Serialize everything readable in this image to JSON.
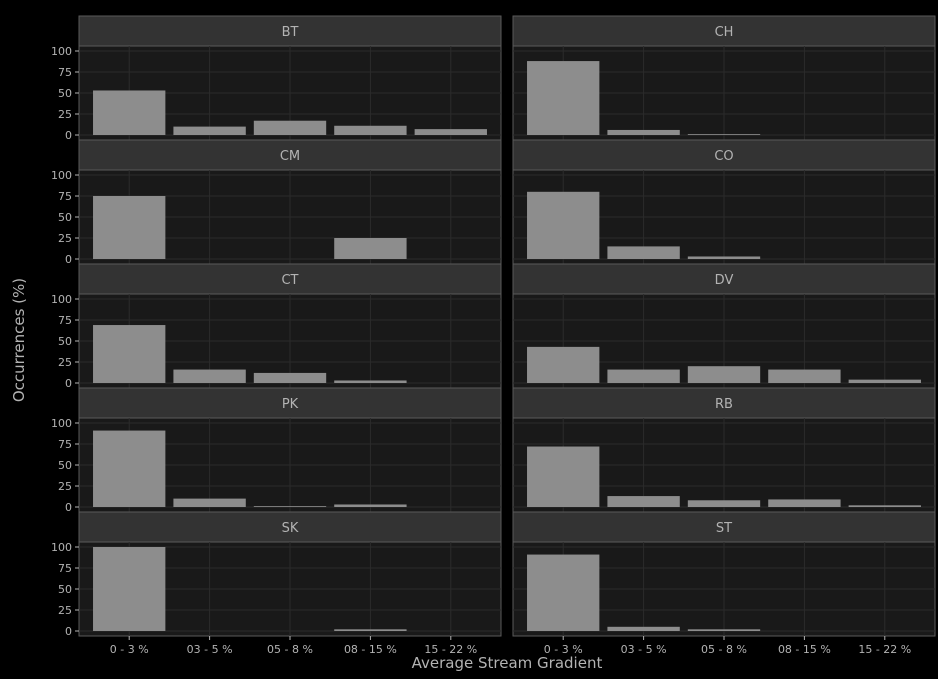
{
  "chart_data": {
    "type": "bar",
    "layout": "faceted 5 rows x 2 columns",
    "xlabel": "Average Stream Gradient",
    "ylabel": "Occurrences (%)",
    "categories": [
      "0 - 3 %",
      "03 - 5 %",
      "05 - 8 %",
      "08 - 15 %",
      "15 - 22 %"
    ],
    "ylim": [
      0,
      100
    ],
    "yticks": [
      0,
      25,
      50,
      75,
      100
    ],
    "grid": true,
    "colors": {
      "background": "#000000",
      "panel": "#191919",
      "strip": "#333333",
      "bar": "#8d8d8d",
      "text": "#b3b3b3",
      "grid": "#2b2b2b",
      "border": "#5a5a5a"
    },
    "panels": [
      {
        "label": "BT",
        "values": [
          53,
          10,
          17,
          11,
          7
        ]
      },
      {
        "label": "CH",
        "values": [
          88,
          6,
          1,
          0,
          0
        ]
      },
      {
        "label": "CM",
        "values": [
          75,
          0,
          0,
          25,
          0
        ]
      },
      {
        "label": "CO",
        "values": [
          80,
          15,
          3,
          0,
          0
        ]
      },
      {
        "label": "CT",
        "values": [
          69,
          16,
          12,
          3,
          0
        ]
      },
      {
        "label": "DV",
        "values": [
          43,
          16,
          20,
          16,
          4
        ]
      },
      {
        "label": "PK",
        "values": [
          91,
          10,
          1,
          3,
          0
        ]
      },
      {
        "label": "RB",
        "values": [
          72,
          13,
          8,
          9,
          2
        ]
      },
      {
        "label": "SK",
        "values": [
          100,
          0,
          0,
          2,
          0
        ]
      },
      {
        "label": "ST",
        "values": [
          91,
          5,
          2,
          0,
          0
        ]
      }
    ]
  }
}
